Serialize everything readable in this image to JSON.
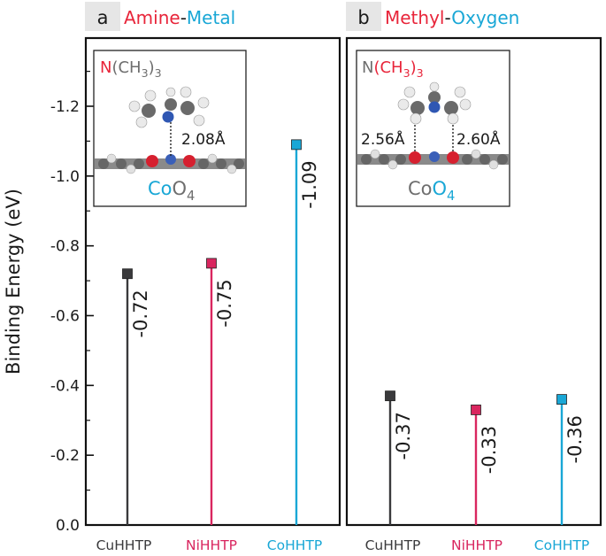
{
  "colors": {
    "cu": "#3a3a3c",
    "ni": "#d9265f",
    "co": "#19a7d6",
    "red": "#e8253a",
    "cyan": "#19a7d6",
    "gray": "#6e6e6e",
    "letter_bg": "#e6e6e6"
  },
  "chart_data": [
    {
      "type": "bar",
      "panel": "a",
      "title_parts": [
        {
          "text": "Amine",
          "color": "red"
        },
        {
          "text": "-",
          "color": "black"
        },
        {
          "text": "Metal",
          "color": "cyan"
        }
      ],
      "categories": [
        "CuHHTP",
        "NiHHTP",
        "CoHHTP"
      ],
      "values": [
        -0.72,
        -0.75,
        -1.09
      ],
      "value_labels": [
        "-0.72",
        "-0.75",
        "-1.09"
      ],
      "ylabel": "Binding Energy (eV)",
      "ylim": [
        0,
        -1.38
      ],
      "yticks": [
        "0.0",
        "-0.2",
        "-0.4",
        "-0.6",
        "-0.8",
        "-1.0",
        "-1.2"
      ],
      "inset": {
        "molecule_parts": [
          {
            "text": "N",
            "color": "red"
          },
          {
            "text": "(CH",
            "color": "gray"
          },
          {
            "text": "3",
            "color": "gray",
            "sub": true
          },
          {
            "text": ")",
            "color": "gray"
          },
          {
            "text": "3",
            "color": "gray",
            "sub": true
          }
        ],
        "surface_parts": [
          {
            "text": "Co",
            "color": "cyan"
          },
          {
            "text": "O",
            "color": "gray"
          },
          {
            "text": "4",
            "color": "gray",
            "sub": true
          }
        ],
        "distances": [
          "2.08Å"
        ]
      }
    },
    {
      "type": "bar",
      "panel": "b",
      "title_parts": [
        {
          "text": "Methyl",
          "color": "red"
        },
        {
          "text": "-",
          "color": "black"
        },
        {
          "text": "Oxygen",
          "color": "cyan"
        }
      ],
      "categories": [
        "CuHHTP",
        "NiHHTP",
        "CoHHTP"
      ],
      "values": [
        -0.37,
        -0.33,
        -0.36
      ],
      "value_labels": [
        "-0.37",
        "-0.33",
        "-0.36"
      ],
      "ylim": [
        0,
        -1.38
      ],
      "inset": {
        "molecule_parts": [
          {
            "text": "N",
            "color": "gray"
          },
          {
            "text": "(CH",
            "color": "red"
          },
          {
            "text": "3",
            "color": "red",
            "sub": true
          },
          {
            "text": ")",
            "color": "red"
          },
          {
            "text": "3",
            "color": "red",
            "sub": true
          }
        ],
        "surface_parts": [
          {
            "text": "Co",
            "color": "gray"
          },
          {
            "text": "O",
            "color": "cyan"
          },
          {
            "text": "4",
            "color": "cyan",
            "sub": true
          }
        ],
        "distances": [
          "2.56Å",
          "2.60Å"
        ]
      }
    }
  ]
}
